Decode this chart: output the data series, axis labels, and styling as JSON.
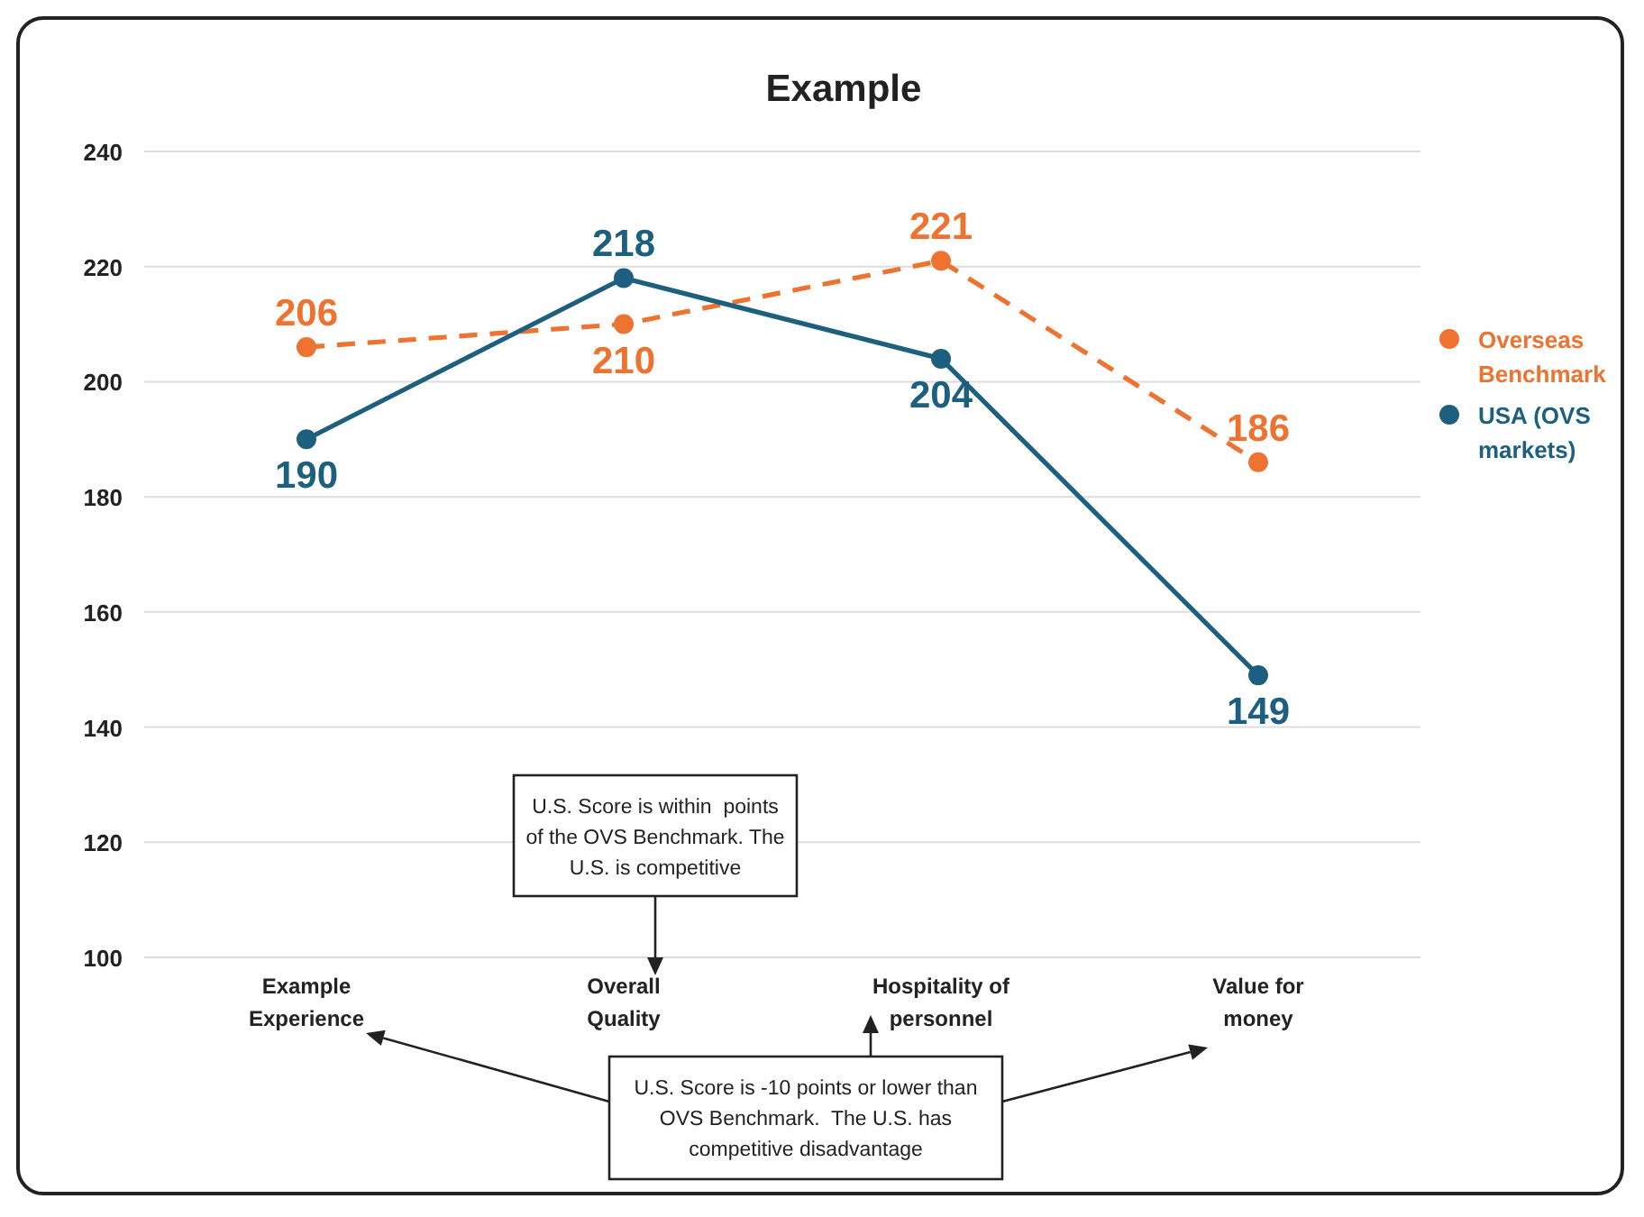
{
  "chart_data": {
    "type": "line",
    "title": "Example",
    "categories": [
      "Example Experience",
      "Overall Quality",
      "Hospitality of personnel",
      "Value for money"
    ],
    "series": [
      {
        "name": "Overseas Benchmark",
        "color": "#ee7230",
        "values": [
          206,
          210,
          221,
          186
        ],
        "line_style": "dashed"
      },
      {
        "name": "USA (OVS markets)",
        "color": "#1d5f7e",
        "values": [
          190,
          218,
          204,
          149
        ],
        "line_style": "solid"
      }
    ],
    "ylim": [
      100,
      240
    ],
    "yticks": [
      100,
      120,
      140,
      160,
      180,
      200,
      220,
      240
    ],
    "grid": "y",
    "legend": "right",
    "marker": "circle",
    "data_labels": true,
    "annotations": [
      "U.S. Score is within  points of the OVS Benchmark. The U.S. is competitive",
      "U.S. Score is -10 points or lower than OVS Benchmark.  The U.S. has competitive disadvantage"
    ]
  }
}
